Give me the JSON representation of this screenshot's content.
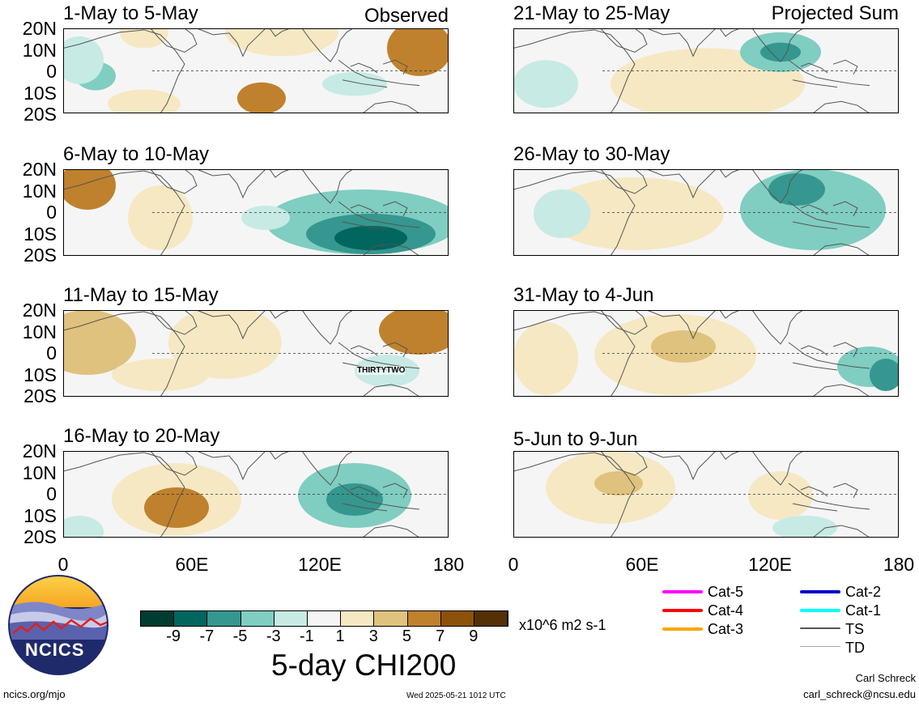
{
  "chart_data": {
    "type": "heatmap",
    "title": "5-day CHI200",
    "units": "x10^6 m2 s-1",
    "colorbar": {
      "ticks": [
        "-9",
        "-7",
        "-5",
        "-3",
        "-1",
        "1",
        "3",
        "5",
        "7",
        "9"
      ],
      "colors": [
        "#003c30",
        "#01665e",
        "#35978f",
        "#80cdc1",
        "#c7eae5",
        "#f5f5f5",
        "#f6e8c3",
        "#dfc27d",
        "#bf812d",
        "#8c510a",
        "#543005"
      ]
    },
    "x_axis": {
      "ticks": [
        "0",
        "60E",
        "120E",
        "180"
      ],
      "range": [
        0,
        180
      ]
    },
    "y_axis": {
      "ticks": [
        "20N",
        "10N",
        "0",
        "10S",
        "20S"
      ],
      "range": [
        -20,
        20
      ]
    },
    "panels": [
      {
        "period": "1-May to 5-May",
        "label": "Observed",
        "type": "observed"
      },
      {
        "period": "6-May to 10-May",
        "label": "",
        "type": "observed"
      },
      {
        "period": "11-May to 15-May",
        "label": "",
        "type": "observed",
        "storm_label": "THIRTYTWO"
      },
      {
        "period": "16-May to 20-May",
        "label": "",
        "type": "observed"
      },
      {
        "period": "21-May to 25-May",
        "label": "Projected Sum",
        "type": "projected"
      },
      {
        "period": "26-May to 30-May",
        "label": "",
        "type": "projected"
      },
      {
        "period": "31-May to 4-Jun",
        "label": "",
        "type": "projected"
      },
      {
        "period": "5-Jun to 9-Jun",
        "label": "",
        "type": "projected"
      }
    ]
  },
  "legend": {
    "items": [
      {
        "label": "Cat-5",
        "color": "#ff00ff"
      },
      {
        "label": "Cat-4",
        "color": "#ff0000"
      },
      {
        "label": "Cat-3",
        "color": "#ffa500"
      },
      {
        "label": "Cat-2",
        "color": "#0000cd"
      },
      {
        "label": "Cat-1",
        "color": "#00ffff"
      },
      {
        "label": "TS",
        "color": "#555555"
      },
      {
        "label": "TD",
        "color": "#aaaaaa"
      }
    ]
  },
  "logo": {
    "text": "NCICS"
  },
  "footer": {
    "url": "ncics.org/mjo",
    "timestamp": "Wed 2025-05-21 1012 UTC",
    "author": "Carl Schreck",
    "email": "carl_schreck@ncsu.edu"
  }
}
